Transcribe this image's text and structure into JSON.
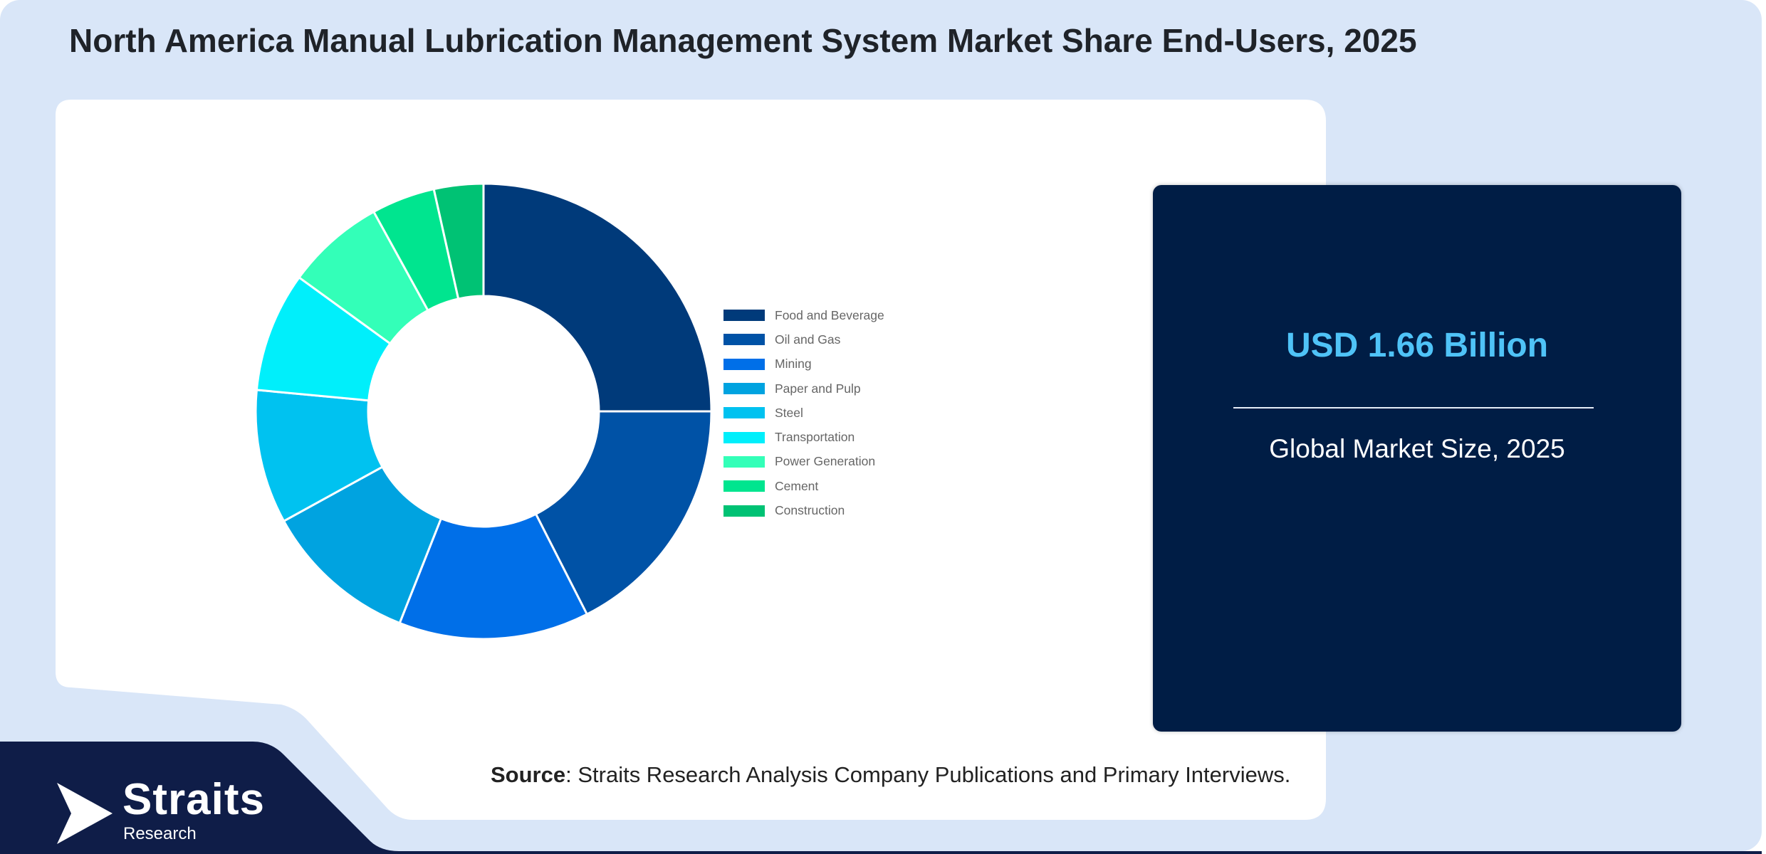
{
  "title": "North America Manual Lubrication Management System Market Share End-Users, 2025",
  "stat": {
    "value": "USD 1.66 Billion",
    "label": "Global Market Size, 2025"
  },
  "source": {
    "prefix": "Source",
    "text": ": Straits Research Analysis Company Publications and Primary Interviews."
  },
  "logo": {
    "name": "Straits",
    "sub": "Research"
  },
  "colors": {
    "frame_bg": "#d9e6f8",
    "card_bg": "#001d45",
    "stat_value": "#4fc3f7",
    "footer_band": "#0f1d48"
  },
  "chart_data": {
    "type": "pie",
    "donut": true,
    "title": "",
    "legend_position": "right",
    "categories": [
      "Food and Beverage",
      "Oil and Gas",
      "Mining",
      "Paper and Pulp",
      "Steel",
      "Transportation",
      "Power Generation",
      "Cement",
      "Construction"
    ],
    "values": [
      25,
      17.5,
      13.5,
      11,
      9.5,
      8.5,
      7,
      4.5,
      3.5
    ],
    "unit": "%",
    "colors": [
      "#003a7a",
      "#0052a6",
      "#006fe8",
      "#00a3e0",
      "#00c2f0",
      "#00effb",
      "#33ffb8",
      "#00e58f",
      "#00c274"
    ]
  }
}
